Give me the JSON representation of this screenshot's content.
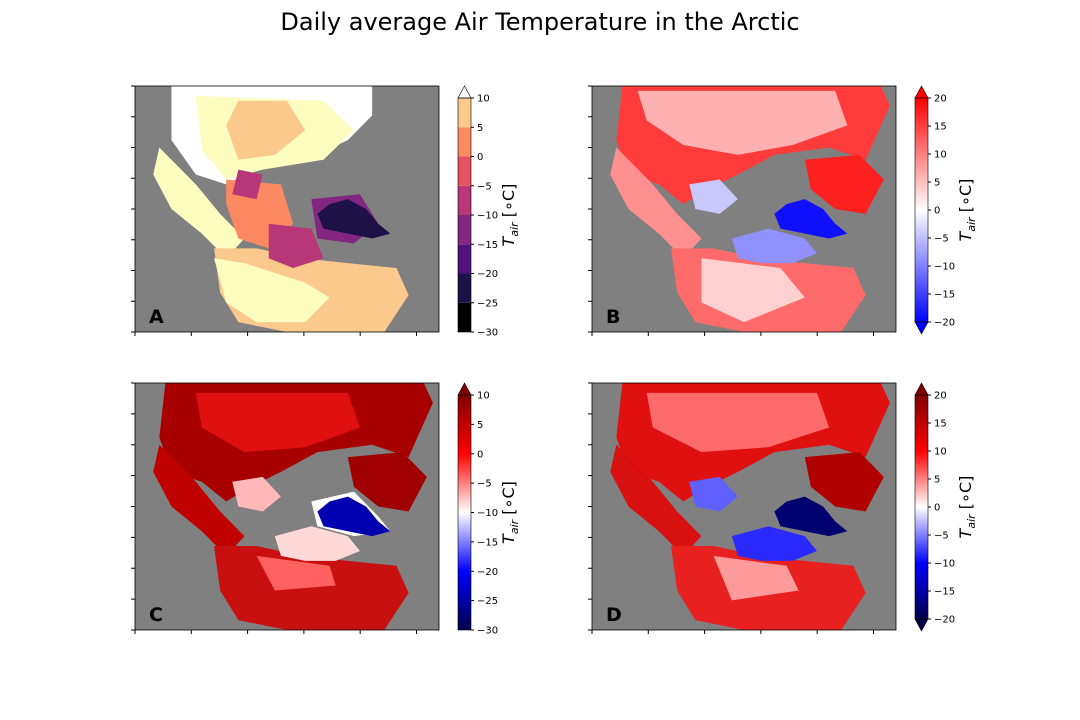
{
  "title": "Daily average Air Temperature in the Arctic",
  "chart_data": [
    {
      "type": "heatmap",
      "panel": "A",
      "colormap": "magma-discrete",
      "colorbar": {
        "label": "T_air [°C]",
        "label_main": "T",
        "label_sub": "air",
        "label_units": " [∘C]",
        "range": [
          -30,
          10
        ],
        "ticks": [
          "10",
          "5",
          "0",
          "−5",
          "−10",
          "−15",
          "−20",
          "−25",
          "−30"
        ],
        "tick_values": [
          10,
          5,
          0,
          -5,
          -10,
          -15,
          -20,
          -25,
          -30
        ],
        "extend": "max",
        "colors": [
          "#000004",
          "#1d1147",
          "#51127c",
          "#822681",
          "#b73779",
          "#e75263",
          "#fc8961",
          "#fcc98c",
          "#fcfdbf"
        ]
      },
      "background": "#808080",
      "missing_color": "#ffffff"
    },
    {
      "type": "heatmap",
      "panel": "B",
      "colormap": "bwr",
      "colorbar": {
        "label": "T_air [°C]",
        "label_main": "T",
        "label_sub": "air",
        "label_units": " [∘C]",
        "range": [
          -20,
          20
        ],
        "ticks": [
          "20",
          "15",
          "10",
          "5",
          "0",
          "−5",
          "−10",
          "−15",
          "−20"
        ],
        "tick_values": [
          20,
          15,
          10,
          5,
          0,
          -5,
          -10,
          -15,
          -20
        ],
        "extend": "both",
        "colors": [
          "#0000ff",
          "#ffffff",
          "#ff0000"
        ]
      },
      "background": "#808080"
    },
    {
      "type": "heatmap",
      "panel": "C",
      "colormap": "seismic",
      "colorbar": {
        "label": "T_air [°C]",
        "label_main": "T",
        "label_sub": "air",
        "label_units": " [∘C]",
        "range": [
          -30,
          10
        ],
        "ticks": [
          "10",
          "5",
          "0",
          "−5",
          "−10",
          "−15",
          "−20",
          "−25",
          "−30"
        ],
        "tick_values": [
          10,
          5,
          0,
          -5,
          -10,
          -15,
          -20,
          -25,
          -30
        ],
        "extend": "max",
        "colors": [
          "#00004c",
          "#0000ff",
          "#ffffff",
          "#ff0000",
          "#800000"
        ]
      },
      "background": "#808080"
    },
    {
      "type": "heatmap",
      "panel": "D",
      "colormap": "seismic",
      "colorbar": {
        "label": "T_air [°C]",
        "label_main": "T",
        "label_sub": "air",
        "label_units": " [∘C]",
        "range": [
          -20,
          20
        ],
        "ticks": [
          "20",
          "15",
          "10",
          "5",
          "0",
          "−5",
          "−10",
          "−15",
          "−20"
        ],
        "tick_values": [
          20,
          15,
          10,
          5,
          0,
          -5,
          -10,
          -15,
          -20
        ],
        "extend": "both",
        "colors": [
          "#00004c",
          "#0000ff",
          "#ffffff",
          "#ff0000",
          "#800000"
        ]
      },
      "background": "#808080"
    }
  ]
}
